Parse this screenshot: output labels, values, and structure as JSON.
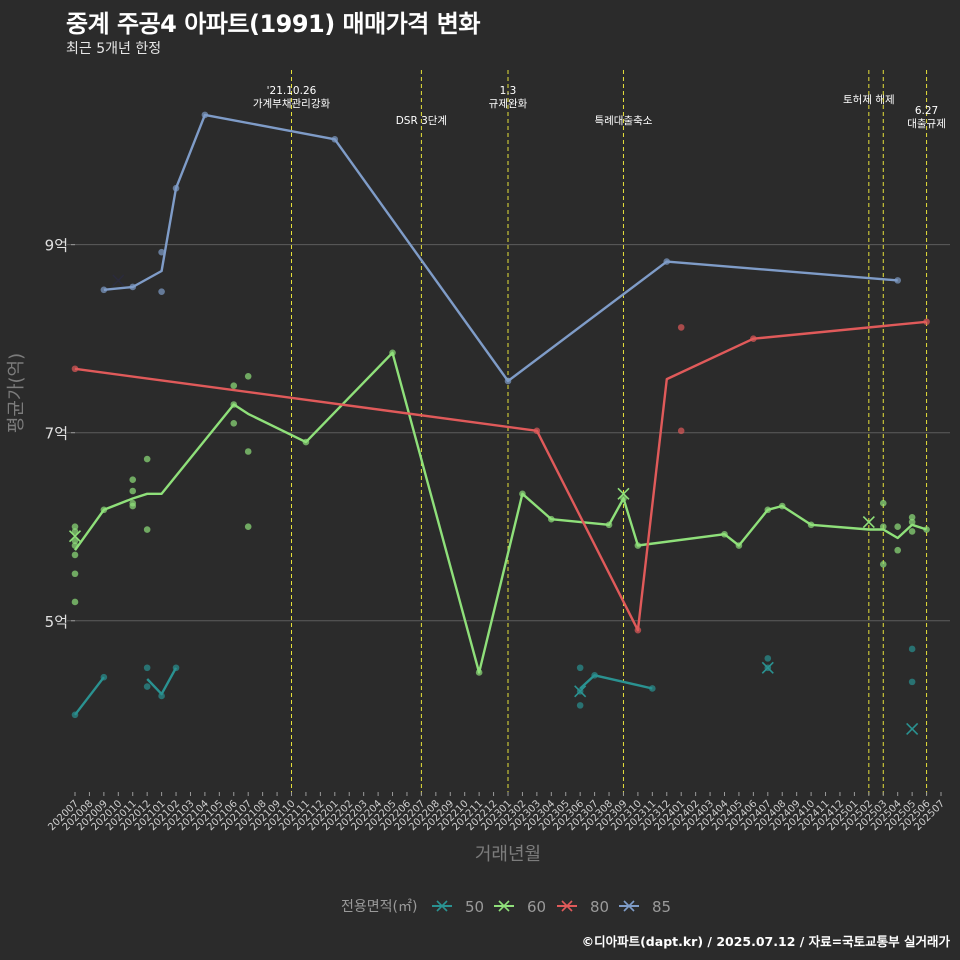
{
  "header": {
    "title": "중계 주공4 아파트(1991) 매매가격 변화",
    "subtitle": "최근 5개년 한정"
  },
  "footer": "©디아파트(dapt.kr) / 2025.07.12 / 자료=국토교통부 실거래가",
  "colors": {
    "background": "#2b2b2b",
    "s50": "#2a9291",
    "s60": "#8fe07a",
    "s80": "#e05a5a",
    "s85": "#7f9cc8",
    "event_line": "#e6e03a"
  },
  "chart_data": {
    "type": "line",
    "title": "중계 주공4 아파트(1991) 매매가격 변화",
    "subtitle": "최근 5개년 한정",
    "xlabel": "거래년월",
    "ylabel": "평균가(억)",
    "ylim": [
      3.2,
      10.9
    ],
    "yticks": [
      5,
      7,
      9
    ],
    "ytick_labels": [
      "5억",
      "7억",
      "9억"
    ],
    "x_start": "2020-07",
    "x_end": "2025-07",
    "x_labels": [
      "202007",
      "202008",
      "202009",
      "202010",
      "202011",
      "202012",
      "202101",
      "202102",
      "202103",
      "202104",
      "202105",
      "202106",
      "202107",
      "202108",
      "202109",
      "202110",
      "202111",
      "202112",
      "202201",
      "202202",
      "202203",
      "202204",
      "202205",
      "202206",
      "202207",
      "202208",
      "202209",
      "202210",
      "202211",
      "202212",
      "202301",
      "202302",
      "202303",
      "202304",
      "202305",
      "202306",
      "202307",
      "202308",
      "202309",
      "202310",
      "202311",
      "202312",
      "202401",
      "202402",
      "202403",
      "202404",
      "202405",
      "202406",
      "202407",
      "202408",
      "202409",
      "202410",
      "202411",
      "202412",
      "202501",
      "202502",
      "202503",
      "202504",
      "202505",
      "202506",
      "202507"
    ],
    "legend_title": "전용면적(㎡)",
    "legend": [
      "50",
      "60",
      "80",
      "85"
    ],
    "events": [
      {
        "x": 15,
        "label": "'21.10.26\n가계부채관리강화"
      },
      {
        "x": 24,
        "label": "DSR 3단계"
      },
      {
        "x": 30,
        "label": "1.3\n규제완화"
      },
      {
        "x": 38,
        "label": "특례대출축소"
      },
      {
        "x": 55,
        "label": "토허제 해제"
      },
      {
        "x": 56,
        "label": ""
      },
      {
        "x": 59,
        "label": "6.27\n대출규제"
      }
    ],
    "series": [
      {
        "name": "50",
        "color": "#2a9291",
        "segments": [
          [
            [
              0,
              4.0
            ],
            [
              2,
              4.4
            ]
          ],
          [
            [
              5,
              4.38
            ],
            [
              6,
              4.22
            ],
            [
              7,
              4.5
            ]
          ],
          [
            [
              35,
              4.28
            ],
            [
              36,
              4.42
            ],
            [
              40,
              4.28
            ]
          ]
        ],
        "points": [
          [
            0,
            4.0
          ],
          [
            2,
            4.4
          ],
          [
            5,
            4.5
          ],
          [
            5,
            4.3
          ],
          [
            6,
            4.2
          ],
          [
            7,
            4.5
          ],
          [
            35,
            4.5
          ],
          [
            35,
            4.25
          ],
          [
            35,
            4.1
          ],
          [
            36,
            4.42
          ],
          [
            40,
            4.28
          ],
          [
            48,
            4.6
          ],
          [
            48,
            4.5
          ],
          [
            58,
            4.7
          ],
          [
            58,
            4.35
          ]
        ],
        "highlights": [
          [
            35,
            4.25
          ],
          [
            48,
            4.5
          ],
          [
            58,
            3.85
          ]
        ]
      },
      {
        "name": "60",
        "color": "#8fe07a",
        "segments": [
          [
            [
              0,
              5.75
            ],
            [
              2,
              6.18
            ],
            [
              4,
              6.3
            ],
            [
              5,
              6.35
            ],
            [
              6,
              6.35
            ],
            [
              11,
              7.3
            ],
            [
              12,
              7.2
            ],
            [
              16,
              6.9
            ],
            [
              22,
              7.85
            ],
            [
              28,
              4.45
            ],
            [
              31,
              6.35
            ],
            [
              33,
              6.08
            ],
            [
              37,
              6.02
            ],
            [
              38,
              6.3
            ],
            [
              39,
              5.8
            ],
            [
              45,
              5.92
            ],
            [
              46,
              5.8
            ],
            [
              48,
              6.18
            ],
            [
              49,
              6.22
            ],
            [
              51,
              6.02
            ],
            [
              55,
              5.97
            ],
            [
              56,
              5.97
            ],
            [
              57,
              5.88
            ],
            [
              58,
              6.02
            ],
            [
              59,
              5.97
            ]
          ]
        ],
        "points": [
          [
            0,
            6.0
          ],
          [
            0,
            5.95
          ],
          [
            0,
            5.85
          ],
          [
            0,
            5.8
          ],
          [
            0,
            5.7
          ],
          [
            0,
            5.5
          ],
          [
            0,
            5.2
          ],
          [
            2,
            6.18
          ],
          [
            4,
            6.5
          ],
          [
            4,
            6.38
          ],
          [
            4,
            6.25
          ],
          [
            4,
            6.22
          ],
          [
            5,
            6.72
          ],
          [
            5,
            5.97
          ],
          [
            11,
            7.5
          ],
          [
            11,
            7.3
          ],
          [
            11,
            7.1
          ],
          [
            12,
            7.6
          ],
          [
            12,
            6.8
          ],
          [
            12,
            6.0
          ],
          [
            16,
            6.9
          ],
          [
            22,
            7.85
          ],
          [
            28,
            4.45
          ],
          [
            31,
            6.35
          ],
          [
            33,
            6.08
          ],
          [
            37,
            6.02
          ],
          [
            38,
            6.3
          ],
          [
            39,
            5.8
          ],
          [
            45,
            5.92
          ],
          [
            46,
            5.8
          ],
          [
            48,
            6.18
          ],
          [
            49,
            6.22
          ],
          [
            51,
            6.02
          ],
          [
            56,
            6.25
          ],
          [
            56,
            6.0
          ],
          [
            56,
            5.6
          ],
          [
            57,
            6.0
          ],
          [
            57,
            5.75
          ],
          [
            58,
            6.1
          ],
          [
            58,
            6.05
          ],
          [
            58,
            5.95
          ],
          [
            59,
            5.97
          ]
        ],
        "highlights": [
          [
            0,
            5.9
          ],
          [
            38,
            6.35
          ],
          [
            55,
            6.05
          ]
        ]
      },
      {
        "name": "80",
        "color": "#e05a5a",
        "segments": [
          [
            [
              0,
              7.68
            ],
            [
              32,
              7.02
            ],
            [
              39,
              4.9
            ],
            [
              41,
              7.57
            ],
            [
              47,
              8.0
            ],
            [
              59,
              8.18
            ]
          ]
        ],
        "points": [
          [
            0,
            7.68
          ],
          [
            32,
            7.02
          ],
          [
            39,
            4.9
          ],
          [
            42,
            8.12
          ],
          [
            42,
            7.02
          ],
          [
            47,
            8.0
          ],
          [
            59,
            8.18
          ]
        ],
        "highlights": []
      },
      {
        "name": "85",
        "color": "#7f9cc8",
        "segments": [
          [
            [
              2,
              8.52
            ],
            [
              4,
              8.55
            ],
            [
              6,
              8.72
            ],
            [
              7,
              9.6
            ],
            [
              9,
              10.38
            ],
            [
              18,
              10.12
            ],
            [
              30,
              7.55
            ],
            [
              41,
              8.82
            ],
            [
              57,
              8.62
            ]
          ]
        ],
        "points": [
          [
            2,
            8.52
          ],
          [
            4,
            8.55
          ],
          [
            6,
            8.92
          ],
          [
            6,
            8.5
          ],
          [
            7,
            9.6
          ],
          [
            9,
            10.38
          ],
          [
            18,
            10.12
          ],
          [
            30,
            7.55
          ],
          [
            41,
            8.82
          ],
          [
            57,
            8.62
          ]
        ],
        "highlights": [
          [
            3,
            8.62
          ]
        ]
      }
    ]
  }
}
